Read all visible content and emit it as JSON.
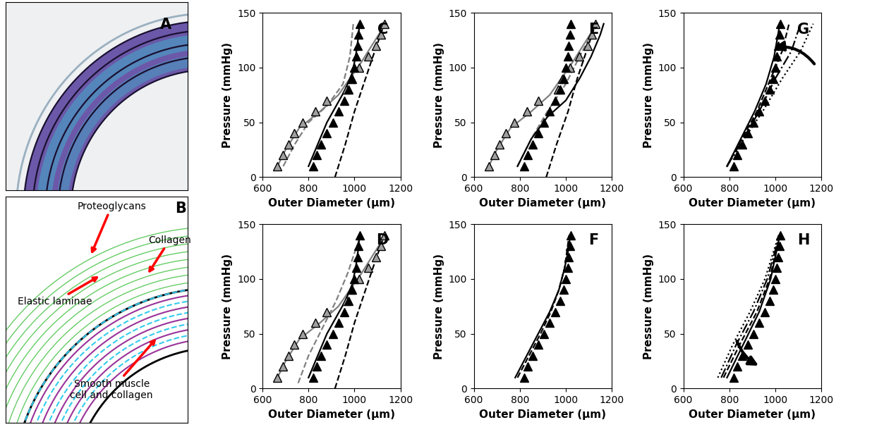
{
  "panels": {
    "A": {
      "label": "A"
    },
    "B": {
      "label": "B",
      "annotations": [
        "Proteoglycans",
        "Collagen",
        "Elastic laminae",
        "Smooth muscle\ncell and collagen"
      ]
    }
  },
  "chart_data": [
    {
      "type": "line",
      "title": "C",
      "x_label": "Outer Diameter (μm)",
      "y_label": "Pressure (mmHg)",
      "xlim": [
        600,
        1200
      ],
      "xticks": [
        600,
        800,
        1000,
        1200
      ],
      "ylim": [
        0,
        150
      ],
      "yticks": [
        0,
        50,
        100,
        150
      ],
      "series": [
        {
          "type": "line",
          "color": "#808080",
          "line_style": "dashed",
          "x": [
            690,
            740,
            800,
            880,
            950,
            980,
            995
          ],
          "values": [
            10,
            30,
            50,
            65,
            85,
            110,
            140
          ]
        },
        {
          "type": "line",
          "color": "#808080",
          "line_style": "solid",
          "x": [
            665,
            700,
            760,
            850,
            930,
            980,
            1030,
            1090,
            1135
          ],
          "values": [
            10,
            25,
            45,
            60,
            75,
            90,
            105,
            125,
            140
          ]
        },
        {
          "type": "line",
          "color": "#000000",
          "line_style": "dashed",
          "x": [
            915,
            960,
            1000,
            1040,
            1080,
            1130
          ],
          "values": [
            0,
            30,
            60,
            85,
            110,
            140
          ]
        },
        {
          "type": "line",
          "color": "#000000",
          "line_style": "solid",
          "x": [
            800,
            840,
            880,
            920,
            960,
            990,
            1005,
            1015,
            1022
          ],
          "values": [
            10,
            30,
            50,
            65,
            80,
            95,
            110,
            125,
            140
          ]
        },
        {
          "type": "scatter",
          "color": "#a0a0a0",
          "marker": "triangle",
          "x": [
            665,
            690,
            712,
            738,
            775,
            830,
            880,
            965,
            985,
            1020,
            1060,
            1095,
            1115,
            1130
          ],
          "values": [
            10,
            20,
            30,
            40,
            50,
            60,
            70,
            80,
            90,
            100,
            110,
            120,
            130,
            140
          ]
        },
        {
          "type": "scatter",
          "color": "#000000",
          "marker": "triangle",
          "x": [
            820,
            835,
            855,
            880,
            905,
            930,
            955,
            975,
            990,
            1000,
            1008,
            1013,
            1018,
            1022
          ],
          "values": [
            10,
            20,
            30,
            40,
            50,
            60,
            70,
            80,
            90,
            100,
            110,
            120,
            130,
            140
          ]
        }
      ]
    },
    {
      "type": "line",
      "title": "D",
      "x_label": "Outer Diameter (μm)",
      "y_label": "Pressure (mmHg)",
      "xlim": [
        600,
        1200
      ],
      "xticks": [
        600,
        800,
        1000,
        1200
      ],
      "ylim": [
        0,
        150
      ],
      "yticks": [
        0,
        50,
        100,
        150
      ],
      "series": [
        {
          "type": "line",
          "color": "#808080",
          "line_style": "dashed",
          "x": [
            755,
            800,
            860,
            920,
            970,
            1010,
            1030
          ],
          "values": [
            5,
            30,
            55,
            80,
            105,
            130,
            140
          ]
        },
        {
          "type": "line",
          "color": "#808080",
          "line_style": "solid",
          "x": [
            665,
            700,
            760,
            850,
            930,
            980,
            1030,
            1090,
            1135
          ],
          "values": [
            10,
            25,
            45,
            60,
            75,
            90,
            105,
            125,
            140
          ]
        },
        {
          "type": "line",
          "color": "#000000",
          "line_style": "dashed",
          "x": [
            915,
            960,
            1000,
            1040,
            1080,
            1130
          ],
          "values": [
            0,
            30,
            60,
            85,
            110,
            140
          ]
        },
        {
          "type": "line",
          "color": "#000000",
          "line_style": "solid",
          "x": [
            800,
            840,
            880,
            920,
            960,
            990,
            1005,
            1015,
            1022
          ],
          "values": [
            10,
            30,
            50,
            65,
            80,
            95,
            110,
            125,
            140
          ]
        },
        {
          "type": "scatter",
          "color": "#a0a0a0",
          "marker": "triangle",
          "x": [
            665,
            690,
            712,
            738,
            775,
            830,
            880,
            965,
            985,
            1020,
            1060,
            1095,
            1115,
            1130
          ],
          "values": [
            10,
            20,
            30,
            40,
            50,
            60,
            70,
            80,
            90,
            100,
            110,
            120,
            130,
            140
          ]
        },
        {
          "type": "scatter",
          "color": "#000000",
          "marker": "triangle",
          "x": [
            820,
            835,
            855,
            880,
            905,
            930,
            955,
            975,
            990,
            1000,
            1008,
            1013,
            1018,
            1022
          ],
          "values": [
            10,
            20,
            30,
            40,
            50,
            60,
            70,
            80,
            90,
            100,
            110,
            120,
            130,
            140
          ]
        }
      ]
    },
    {
      "type": "line",
      "title": "E",
      "x_label": "Outer Diameter (μm)",
      "y_label": "Pressure (mmHg)",
      "xlim": [
        600,
        1200
      ],
      "xticks": [
        600,
        800,
        1000,
        1200
      ],
      "ylim": [
        0,
        150
      ],
      "yticks": [
        0,
        50,
        100,
        150
      ],
      "series": [
        {
          "type": "line",
          "color": "#808080",
          "line_style": "dashed",
          "x": [
            790,
            850,
            920,
            1000,
            1060,
            1110,
            1130
          ],
          "values": [
            10,
            35,
            60,
            85,
            110,
            130,
            140
          ]
        },
        {
          "type": "line",
          "color": "#808080",
          "line_style": "solid",
          "x": [
            665,
            700,
            760,
            850,
            930,
            980,
            1030,
            1090,
            1135
          ],
          "values": [
            10,
            25,
            45,
            60,
            75,
            90,
            105,
            125,
            140
          ]
        },
        {
          "type": "line",
          "color": "#000000",
          "line_style": "dashed",
          "x": [
            915,
            960,
            1010,
            1050,
            1090,
            1130
          ],
          "values": [
            0,
            30,
            60,
            90,
            115,
            140
          ]
        },
        {
          "type": "line",
          "color": "#000000",
          "line_style": "solid",
          "x": [
            790,
            850,
            920,
            1000,
            1060,
            1110,
            1150,
            1165
          ],
          "values": [
            10,
            35,
            55,
            70,
            90,
            110,
            130,
            140
          ]
        },
        {
          "type": "scatter",
          "color": "#a0a0a0",
          "marker": "triangle",
          "x": [
            665,
            690,
            712,
            738,
            775,
            830,
            880,
            965,
            985,
            1020,
            1060,
            1095,
            1115,
            1130
          ],
          "values": [
            10,
            20,
            30,
            40,
            50,
            60,
            70,
            80,
            90,
            100,
            110,
            120,
            130,
            140
          ]
        },
        {
          "type": "scatter",
          "color": "#000000",
          "marker": "triangle",
          "x": [
            820,
            835,
            855,
            880,
            905,
            930,
            955,
            975,
            990,
            1000,
            1008,
            1013,
            1018,
            1022
          ],
          "values": [
            10,
            20,
            30,
            40,
            50,
            60,
            70,
            80,
            90,
            100,
            110,
            120,
            130,
            140
          ]
        }
      ]
    },
    {
      "type": "line",
      "title": "F",
      "x_label": "Outer Diameter (μm)",
      "y_label": "Pressure (mmHg)",
      "xlim": [
        600,
        1200
      ],
      "xticks": [
        600,
        800,
        1000,
        1200
      ],
      "ylim": [
        0,
        150
      ],
      "yticks": [
        0,
        50,
        100,
        150
      ],
      "series": [
        {
          "type": "line",
          "color": "#000000",
          "line_style": "dashed",
          "x": [
            790,
            840,
            890,
            935,
            970,
            995,
            1015
          ],
          "values": [
            10,
            30,
            50,
            70,
            90,
            110,
            140
          ]
        },
        {
          "type": "line",
          "color": "#000000",
          "line_style": "solid",
          "x": [
            780,
            830,
            880,
            930,
            970,
            995,
            1010,
            1020
          ],
          "values": [
            10,
            30,
            50,
            70,
            90,
            110,
            125,
            140
          ]
        },
        {
          "type": "scatter",
          "color": "#000000",
          "marker": "triangle",
          "x": [
            820,
            835,
            855,
            880,
            905,
            930,
            955,
            975,
            990,
            1000,
            1008,
            1013,
            1018,
            1022
          ],
          "values": [
            10,
            20,
            30,
            40,
            50,
            60,
            70,
            80,
            90,
            100,
            110,
            120,
            130,
            140
          ]
        }
      ]
    },
    {
      "type": "line",
      "title": "G",
      "x_label": "Outer Diameter (μm)",
      "y_label": "Pressure (mmHg)",
      "xlim": [
        600,
        1200
      ],
      "xticks": [
        600,
        800,
        1000,
        1200
      ],
      "ylim": [
        0,
        150
      ],
      "yticks": [
        0,
        50,
        100,
        150
      ],
      "series": [
        {
          "type": "line",
          "color": "#000000",
          "line_style": "solid",
          "x": [
            790,
            850,
            910,
            960,
            995,
            1020
          ],
          "values": [
            10,
            35,
            60,
            85,
            110,
            140
          ]
        },
        {
          "type": "line",
          "color": "#000000",
          "line_style": "dashed",
          "x": [
            790,
            855,
            920,
            980,
            1030,
            1060
          ],
          "values": [
            10,
            35,
            60,
            90,
            115,
            140
          ]
        },
        {
          "type": "line",
          "color": "#000000",
          "line_style": "dashdot",
          "x": [
            790,
            860,
            930,
            1000,
            1070,
            1110
          ],
          "values": [
            10,
            35,
            60,
            90,
            115,
            140
          ]
        },
        {
          "type": "line",
          "color": "#000000",
          "line_style": "dotted",
          "x": [
            790,
            865,
            945,
            1030,
            1110,
            1165
          ],
          "values": [
            10,
            35,
            60,
            90,
            115,
            140
          ]
        },
        {
          "type": "scatter",
          "color": "#000000",
          "marker": "triangle",
          "x": [
            820,
            835,
            855,
            880,
            905,
            930,
            955,
            975,
            990,
            1000,
            1008,
            1013,
            1018,
            1022
          ],
          "values": [
            10,
            20,
            30,
            40,
            50,
            60,
            70,
            80,
            90,
            100,
            110,
            120,
            130,
            140
          ]
        }
      ]
    },
    {
      "type": "line",
      "title": "H",
      "x_label": "Outer Diameter (μm)",
      "y_label": "Pressure (mmHg)",
      "xlim": [
        600,
        1200
      ],
      "xticks": [
        600,
        800,
        1000,
        1200
      ],
      "ylim": [
        0,
        150
      ],
      "yticks": [
        0,
        50,
        100,
        150
      ],
      "series": [
        {
          "type": "line",
          "color": "#000000",
          "line_style": "solid",
          "x": [
            790,
            860,
            930,
            980,
            1020
          ],
          "values": [
            10,
            40,
            70,
            100,
            140
          ]
        },
        {
          "type": "line",
          "color": "#000000",
          "line_style": "dashed",
          "x": [
            775,
            845,
            920,
            975,
            1020
          ],
          "values": [
            10,
            40,
            70,
            100,
            140
          ]
        },
        {
          "type": "line",
          "color": "#000000",
          "line_style": "dashdot",
          "x": [
            765,
            830,
            905,
            965,
            1018
          ],
          "values": [
            10,
            40,
            70,
            100,
            140
          ]
        },
        {
          "type": "line",
          "color": "#000000",
          "line_style": "dotted",
          "x": [
            750,
            815,
            890,
            955,
            1015
          ],
          "values": [
            10,
            40,
            70,
            100,
            140
          ]
        },
        {
          "type": "scatter",
          "color": "#000000",
          "marker": "triangle",
          "x": [
            820,
            835,
            855,
            880,
            905,
            930,
            955,
            975,
            990,
            1000,
            1008,
            1013,
            1018,
            1022
          ],
          "values": [
            10,
            20,
            30,
            40,
            50,
            60,
            70,
            80,
            90,
            100,
            110,
            120,
            130,
            140
          ]
        }
      ]
    }
  ]
}
